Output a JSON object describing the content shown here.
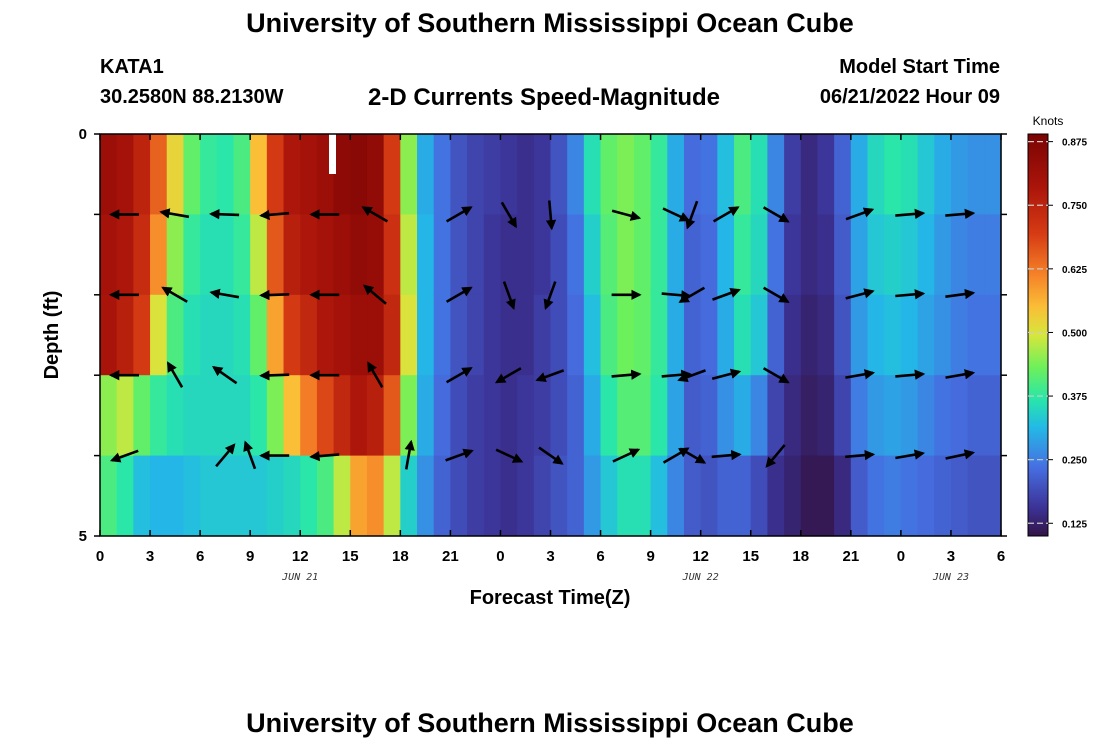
{
  "header": {
    "title": "University of Southern Mississippi Ocean Cube",
    "station": "KATA1",
    "coords": "30.2580N  88.2130W",
    "subtitle": "2-D Currents Speed-Magnitude",
    "model_start_label": "Model Start Time",
    "model_start_value": "06/21/2022 Hour 09"
  },
  "footer": {
    "title": "University of Southern Mississippi Ocean Cube"
  },
  "chart_data": {
    "type": "heatmap",
    "xlabel": "Forecast Time(Z)",
    "ylabel": "Depth (ft)",
    "x_range": [
      0,
      54
    ],
    "y_range": [
      0,
      5
    ],
    "x_tick_labels": [
      "0",
      "3",
      "6",
      "9",
      "12",
      "15",
      "18",
      "21",
      "0",
      "3",
      "6",
      "9",
      "12",
      "15",
      "18",
      "21",
      "0",
      "3",
      "6"
    ],
    "y_tick_labels": [
      "0",
      "5"
    ],
    "date_labels": [
      {
        "text": "JUN 21",
        "x": 12
      },
      {
        "text": "JUN 22",
        "x": 36
      },
      {
        "text": "JUN 23",
        "x": 51
      }
    ],
    "colorbar": {
      "title": "Knots",
      "ticks": [
        "0.875",
        "0.750",
        "0.625",
        "0.500",
        "0.375",
        "0.250",
        "0.125"
      ],
      "tick_values": [
        0.875,
        0.75,
        0.625,
        0.5,
        0.375,
        0.25,
        0.125
      ],
      "min": 0.1,
      "max": 0.89
    },
    "depth_layers": 5,
    "columns": [
      {
        "t": 0,
        "v": [
          0.82,
          0.8,
          0.79,
          0.45,
          0.4
        ]
      },
      {
        "t": 1,
        "v": [
          0.8,
          0.78,
          0.76,
          0.48,
          0.37
        ]
      },
      {
        "t": 2,
        "v": [
          0.75,
          0.73,
          0.7,
          0.42,
          0.32
        ]
      },
      {
        "t": 3,
        "v": [
          0.65,
          0.6,
          0.5,
          0.38,
          0.31
        ]
      },
      {
        "t": 4,
        "v": [
          0.52,
          0.45,
          0.4,
          0.36,
          0.31
        ]
      },
      {
        "t": 5,
        "v": [
          0.42,
          0.38,
          0.36,
          0.35,
          0.32
        ]
      },
      {
        "t": 6,
        "v": [
          0.38,
          0.36,
          0.35,
          0.35,
          0.33
        ]
      },
      {
        "t": 7,
        "v": [
          0.37,
          0.36,
          0.35,
          0.35,
          0.33
        ]
      },
      {
        "t": 8,
        "v": [
          0.4,
          0.38,
          0.36,
          0.35,
          0.33
        ]
      },
      {
        "t": 9,
        "v": [
          0.55,
          0.48,
          0.42,
          0.37,
          0.33
        ]
      },
      {
        "t": 10,
        "v": [
          0.7,
          0.66,
          0.58,
          0.44,
          0.34
        ]
      },
      {
        "t": 11,
        "v": [
          0.78,
          0.76,
          0.7,
          0.55,
          0.35
        ]
      },
      {
        "t": 12,
        "v": [
          0.8,
          0.78,
          0.74,
          0.62,
          0.37
        ]
      },
      {
        "t": 13,
        "v": [
          0.82,
          0.8,
          0.78,
          0.68,
          0.4
        ]
      },
      {
        "t": 14,
        "v": [
          0.85,
          0.82,
          0.8,
          0.74,
          0.48
        ]
      },
      {
        "t": 15,
        "v": [
          0.86,
          0.84,
          0.82,
          0.78,
          0.58
        ]
      },
      {
        "t": 16,
        "v": [
          0.84,
          0.83,
          0.82,
          0.76,
          0.6
        ]
      },
      {
        "t": 17,
        "v": [
          0.7,
          0.72,
          0.74,
          0.66,
          0.48
        ]
      },
      {
        "t": 18,
        "v": [
          0.45,
          0.48,
          0.5,
          0.44,
          0.34
        ]
      },
      {
        "t": 19,
        "v": [
          0.3,
          0.31,
          0.31,
          0.3,
          0.27
        ]
      },
      {
        "t": 20,
        "v": [
          0.24,
          0.24,
          0.24,
          0.23,
          0.22
        ]
      },
      {
        "t": 21,
        "v": [
          0.2,
          0.2,
          0.2,
          0.19,
          0.19
        ]
      },
      {
        "t": 22,
        "v": [
          0.18,
          0.18,
          0.18,
          0.17,
          0.17
        ]
      },
      {
        "t": 23,
        "v": [
          0.17,
          0.16,
          0.16,
          0.16,
          0.16
        ]
      },
      {
        "t": 24,
        "v": [
          0.16,
          0.15,
          0.15,
          0.15,
          0.15
        ]
      },
      {
        "t": 25,
        "v": [
          0.15,
          0.15,
          0.15,
          0.16,
          0.16
        ]
      },
      {
        "t": 26,
        "v": [
          0.16,
          0.16,
          0.17,
          0.17,
          0.18
        ]
      },
      {
        "t": 27,
        "v": [
          0.2,
          0.19,
          0.19,
          0.19,
          0.2
        ]
      },
      {
        "t": 28,
        "v": [
          0.26,
          0.24,
          0.23,
          0.22,
          0.22
        ]
      },
      {
        "t": 29,
        "v": [
          0.36,
          0.34,
          0.32,
          0.3,
          0.28
        ]
      },
      {
        "t": 30,
        "v": [
          0.42,
          0.41,
          0.4,
          0.37,
          0.33
        ]
      },
      {
        "t": 31,
        "v": [
          0.44,
          0.44,
          0.43,
          0.41,
          0.36
        ]
      },
      {
        "t": 32,
        "v": [
          0.42,
          0.42,
          0.42,
          0.41,
          0.36
        ]
      },
      {
        "t": 33,
        "v": [
          0.38,
          0.38,
          0.38,
          0.37,
          0.32
        ]
      },
      {
        "t": 34,
        "v": [
          0.3,
          0.3,
          0.3,
          0.29,
          0.26
        ]
      },
      {
        "t": 35,
        "v": [
          0.23,
          0.22,
          0.22,
          0.21,
          0.21
        ]
      },
      {
        "t": 36,
        "v": [
          0.24,
          0.23,
          0.23,
          0.22,
          0.2
        ]
      },
      {
        "t": 37,
        "v": [
          0.32,
          0.31,
          0.3,
          0.27,
          0.22
        ]
      },
      {
        "t": 38,
        "v": [
          0.4,
          0.38,
          0.36,
          0.3,
          0.22
        ]
      },
      {
        "t": 39,
        "v": [
          0.36,
          0.35,
          0.33,
          0.26,
          0.19
        ]
      },
      {
        "t": 40,
        "v": [
          0.26,
          0.24,
          0.22,
          0.18,
          0.15
        ]
      },
      {
        "t": 41,
        "v": [
          0.17,
          0.16,
          0.15,
          0.14,
          0.13
        ]
      },
      {
        "t": 42,
        "v": [
          0.14,
          0.14,
          0.13,
          0.12,
          0.11
        ]
      },
      {
        "t": 43,
        "v": [
          0.16,
          0.15,
          0.14,
          0.13,
          0.11
        ]
      },
      {
        "t": 44,
        "v": [
          0.22,
          0.21,
          0.2,
          0.18,
          0.14
        ]
      },
      {
        "t": 45,
        "v": [
          0.3,
          0.29,
          0.28,
          0.25,
          0.21
        ]
      },
      {
        "t": 46,
        "v": [
          0.35,
          0.33,
          0.31,
          0.28,
          0.24
        ]
      },
      {
        "t": 47,
        "v": [
          0.37,
          0.34,
          0.32,
          0.29,
          0.25
        ]
      },
      {
        "t": 48,
        "v": [
          0.36,
          0.33,
          0.31,
          0.28,
          0.24
        ]
      },
      {
        "t": 49,
        "v": [
          0.33,
          0.31,
          0.29,
          0.26,
          0.23
        ]
      },
      {
        "t": 50,
        "v": [
          0.3,
          0.28,
          0.27,
          0.24,
          0.22
        ]
      },
      {
        "t": 51,
        "v": [
          0.28,
          0.26,
          0.25,
          0.23,
          0.21
        ]
      },
      {
        "t": 52,
        "v": [
          0.27,
          0.25,
          0.24,
          0.22,
          0.2
        ]
      },
      {
        "t": 53,
        "v": [
          0.27,
          0.25,
          0.24,
          0.22,
          0.2
        ]
      }
    ],
    "vectors": [
      {
        "t": 1.5,
        "d": 1,
        "dir": 270
      },
      {
        "t": 1.5,
        "d": 2,
        "dir": 270
      },
      {
        "t": 1.5,
        "d": 3,
        "dir": 270
      },
      {
        "t": 1.5,
        "d": 4,
        "dir": 250
      },
      {
        "t": 4.5,
        "d": 1,
        "dir": 280
      },
      {
        "t": 4.5,
        "d": 2,
        "dir": 300
      },
      {
        "t": 4.5,
        "d": 3,
        "dir": 330
      },
      {
        "t": 7.5,
        "d": 1,
        "dir": 272
      },
      {
        "t": 7.5,
        "d": 2,
        "dir": 280
      },
      {
        "t": 7.5,
        "d": 3,
        "dir": 305
      },
      {
        "t": 7.5,
        "d": 4,
        "dir": 40
      },
      {
        "t": 9.0,
        "d": 4,
        "dir": 340
      },
      {
        "t": 10.5,
        "d": 1,
        "dir": 265
      },
      {
        "t": 10.5,
        "d": 2,
        "dir": 268
      },
      {
        "t": 10.5,
        "d": 3,
        "dir": 268
      },
      {
        "t": 10.5,
        "d": 4,
        "dir": 270
      },
      {
        "t": 13.5,
        "d": 1,
        "dir": 270
      },
      {
        "t": 13.5,
        "d": 2,
        "dir": 270
      },
      {
        "t": 13.5,
        "d": 3,
        "dir": 270
      },
      {
        "t": 13.5,
        "d": 4,
        "dir": 265
      },
      {
        "t": 16.5,
        "d": 1,
        "dir": 300
      },
      {
        "t": 16.5,
        "d": 2,
        "dir": 310
      },
      {
        "t": 16.5,
        "d": 3,
        "dir": 330
      },
      {
        "t": 18.5,
        "d": 4,
        "dir": 10
      },
      {
        "t": 21.5,
        "d": 1,
        "dir": 60
      },
      {
        "t": 21.5,
        "d": 2,
        "dir": 60
      },
      {
        "t": 21.5,
        "d": 3,
        "dir": 60
      },
      {
        "t": 21.5,
        "d": 4,
        "dir": 70
      },
      {
        "t": 24.5,
        "d": 1,
        "dir": 150
      },
      {
        "t": 24.5,
        "d": 2,
        "dir": 160
      },
      {
        "t": 24.5,
        "d": 3,
        "dir": 240
      },
      {
        "t": 24.5,
        "d": 4,
        "dir": 115
      },
      {
        "t": 27.0,
        "d": 1,
        "dir": 175
      },
      {
        "t": 27.0,
        "d": 2,
        "dir": 200
      },
      {
        "t": 27.0,
        "d": 3,
        "dir": 250
      },
      {
        "t": 27.0,
        "d": 4,
        "dir": 125
      },
      {
        "t": 31.5,
        "d": 1,
        "dir": 105
      },
      {
        "t": 31.5,
        "d": 2,
        "dir": 90
      },
      {
        "t": 31.5,
        "d": 3,
        "dir": 85
      },
      {
        "t": 31.5,
        "d": 4,
        "dir": 65
      },
      {
        "t": 34.5,
        "d": 1,
        "dir": 115
      },
      {
        "t": 34.5,
        "d": 2,
        "dir": 95
      },
      {
        "t": 34.5,
        "d": 3,
        "dir": 85
      },
      {
        "t": 34.5,
        "d": 4,
        "dir": 60
      },
      {
        "t": 35.5,
        "d": 1,
        "dir": 200
      },
      {
        "t": 35.5,
        "d": 2,
        "dir": 240
      },
      {
        "t": 35.5,
        "d": 3,
        "dir": 250
      },
      {
        "t": 35.5,
        "d": 4,
        "dir": 120
      },
      {
        "t": 37.5,
        "d": 1,
        "dir": 60
      },
      {
        "t": 37.5,
        "d": 2,
        "dir": 70
      },
      {
        "t": 37.5,
        "d": 3,
        "dir": 75
      },
      {
        "t": 37.5,
        "d": 4,
        "dir": 85
      },
      {
        "t": 40.5,
        "d": 1,
        "dir": 120
      },
      {
        "t": 40.5,
        "d": 2,
        "dir": 120
      },
      {
        "t": 40.5,
        "d": 3,
        "dir": 120
      },
      {
        "t": 40.5,
        "d": 4,
        "dir": 220
      },
      {
        "t": 45.5,
        "d": 1,
        "dir": 70
      },
      {
        "t": 45.5,
        "d": 2,
        "dir": 75
      },
      {
        "t": 45.5,
        "d": 3,
        "dir": 80
      },
      {
        "t": 45.5,
        "d": 4,
        "dir": 85
      },
      {
        "t": 48.5,
        "d": 1,
        "dir": 85
      },
      {
        "t": 48.5,
        "d": 2,
        "dir": 85
      },
      {
        "t": 48.5,
        "d": 3,
        "dir": 85
      },
      {
        "t": 48.5,
        "d": 4,
        "dir": 80
      },
      {
        "t": 51.5,
        "d": 1,
        "dir": 85
      },
      {
        "t": 51.5,
        "d": 2,
        "dir": 82
      },
      {
        "t": 51.5,
        "d": 3,
        "dir": 80
      },
      {
        "t": 51.5,
        "d": 4,
        "dir": 78
      }
    ]
  }
}
